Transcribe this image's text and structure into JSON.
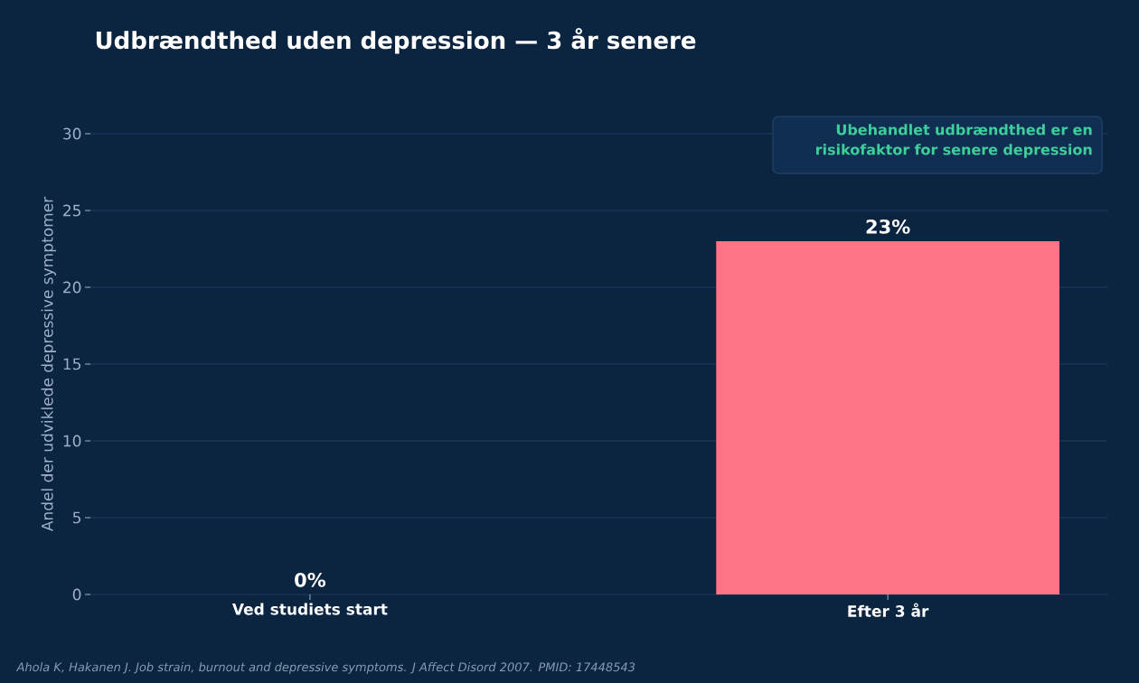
{
  "chart_data": {
    "type": "bar",
    "title": "Udbrændthed uden depression — 3 år senere",
    "ylabel": "Andel der udviklede depressive symptomer",
    "categories": [
      "Ved studiets start",
      "Efter 3 år"
    ],
    "values": [
      0,
      23
    ],
    "value_labels": [
      "0%",
      "23%"
    ],
    "colors": [
      "#ff7386",
      "#ff7386"
    ],
    "ylim": [
      0,
      30
    ],
    "yticks": [
      0,
      5,
      10,
      15,
      20,
      25,
      30
    ],
    "grid": "y",
    "annotations": [
      "Ubehandlet udbrændthed er en risikofaktor for senere depression",
      "Ahola K, Hakanen J. Job strain, burnout and depressive symptoms. J Affect Disord 2007. PMID: 17448543"
    ]
  }
}
